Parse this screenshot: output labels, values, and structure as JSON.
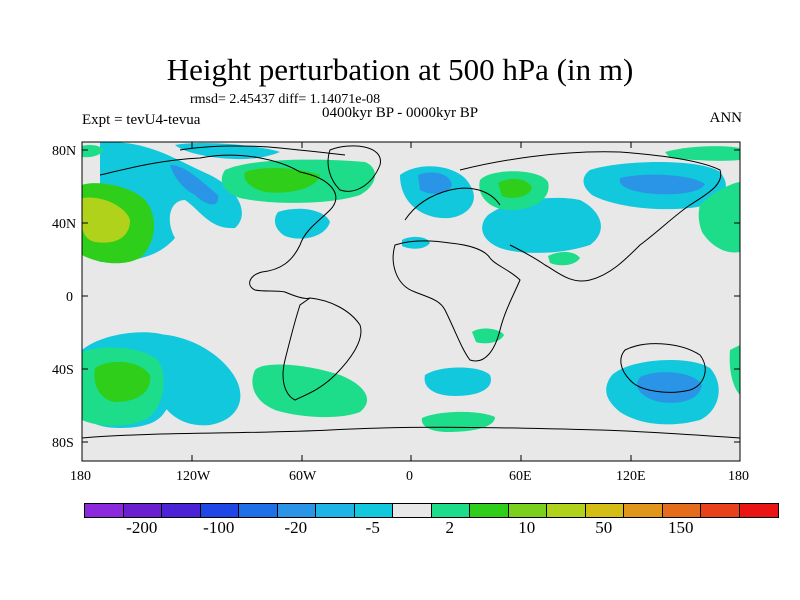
{
  "title": "Height perturbation at 500 hPa (in m)",
  "stats": "rmsd= 2.45437 diff= 1.14071e-08",
  "expt": "Expt = tevU4-tevua",
  "period": "0400kyr BP - 0000kyr BP",
  "season": "ANN",
  "lat_ticks": [
    "80N",
    "40N",
    "0",
    "40S",
    "80S"
  ],
  "lon_ticks": [
    "180",
    "120W",
    "60W",
    "0",
    "60E",
    "120E",
    "180"
  ],
  "colorbar": {
    "colors": [
      "#8c29de",
      "#6a1fd1",
      "#4b22d6",
      "#1e47e6",
      "#1f6fe8",
      "#2a95e6",
      "#1eb4e6",
      "#12c8dc",
      "#e8e8e8",
      "#1edd8a",
      "#2ece1a",
      "#7ad01a",
      "#b0d21a",
      "#d4be16",
      "#e0961a",
      "#e56c1a",
      "#e8421a",
      "#ea1414"
    ],
    "labels": [
      "-200",
      "-100",
      "-20",
      "-5",
      "2",
      "10",
      "50",
      "150"
    ]
  },
  "legend_colors": {
    "land_outline": "#000000",
    "background": "#e8e8e8"
  }
}
